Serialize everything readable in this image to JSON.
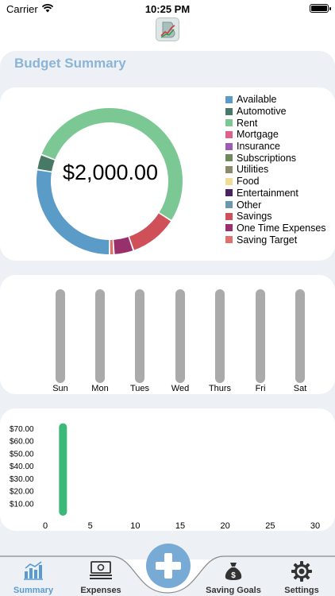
{
  "status_bar": {
    "carrier": "Carrier",
    "time": "10:25 PM"
  },
  "page": {
    "title": "Budget Summary"
  },
  "donut": {
    "center_value": "$2,000.00",
    "legend": [
      {
        "label": "Available",
        "color": "#5a9bc8"
      },
      {
        "label": "Automotive",
        "color": "#467a66"
      },
      {
        "label": "Rent",
        "color": "#7cc894"
      },
      {
        "label": "Mortgage",
        "color": "#e0608c"
      },
      {
        "label": "Insurance",
        "color": "#9a5cb4"
      },
      {
        "label": "Subscriptions",
        "color": "#6e8a5c"
      },
      {
        "label": "Utilities",
        "color": "#8c8a6c"
      },
      {
        "label": "Food",
        "color": "#f0dc96"
      },
      {
        "label": "Entertainment",
        "color": "#4a2260"
      },
      {
        "label": "Other",
        "color": "#6a9aaa"
      },
      {
        "label": "Savings",
        "color": "#d0505a"
      },
      {
        "label": "One Time Expenses",
        "color": "#98306c"
      },
      {
        "label": "Saving Target",
        "color": "#e0706c"
      }
    ]
  },
  "chart_data": [
    {
      "type": "pie",
      "center_label": "$2,000.00",
      "categories": [
        "Available",
        "Automotive",
        "Rent",
        "Mortgage",
        "Insurance",
        "Subscriptions",
        "Utilities",
        "Food",
        "Entertainment",
        "Other",
        "Savings",
        "One Time Expenses",
        "Saving Target"
      ],
      "values": [
        28.5,
        3.5,
        55,
        0,
        0,
        0,
        0,
        0,
        0,
        0,
        11,
        4.5,
        1
      ],
      "colors": [
        "#5a9bc8",
        "#467a66",
        "#7cc894",
        "#e0608c",
        "#9a5cb4",
        "#6e8a5c",
        "#8c8a6c",
        "#f0dc96",
        "#4a2260",
        "#6a9aaa",
        "#d0505a",
        "#98306c",
        "#e0706c"
      ]
    },
    {
      "type": "bar",
      "categories": [
        "Sun",
        "Mon",
        "Tues",
        "Wed",
        "Thurs",
        "Fri",
        "Sat"
      ],
      "values": [
        0,
        0,
        0,
        0,
        0,
        0,
        0
      ],
      "track_color": "#aaaaaa"
    },
    {
      "type": "bar",
      "x_ticks": [
        0,
        5,
        10,
        15,
        20,
        25,
        30
      ],
      "y_ticks": [
        "$10.00",
        "$20.00",
        "$30.00",
        "$40.00",
        "$50.00",
        "$60.00",
        "$70.00"
      ],
      "xlim": [
        0,
        30
      ],
      "ylim": [
        0,
        75
      ],
      "series": [
        {
          "x": [
            1
          ],
          "values": [
            74
          ]
        }
      ],
      "bar_color": "#3cb878"
    }
  ],
  "tabs": [
    {
      "label": "Summary",
      "icon": "bar-chart-icon",
      "active": true
    },
    {
      "label": "Expenses",
      "icon": "money-icon",
      "active": false
    },
    {
      "label": "Saving Goals",
      "icon": "money-bag-icon",
      "active": false
    },
    {
      "label": "Settings",
      "icon": "gear-icon",
      "active": false
    }
  ]
}
